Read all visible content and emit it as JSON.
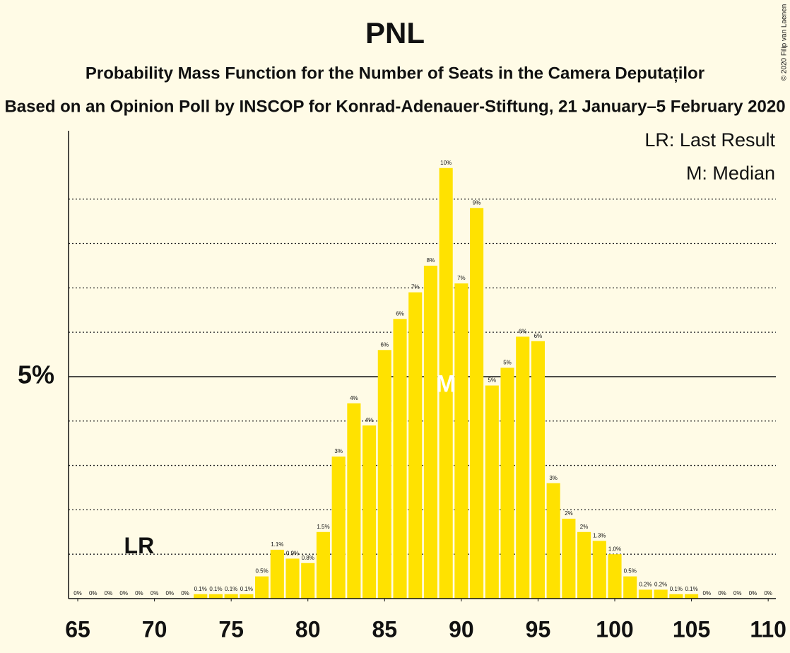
{
  "chart_data": {
    "type": "bar",
    "title": "PNL",
    "subtitle": "Probability Mass Function for the Number of Seats in the Camera Deputaților",
    "subtitle2": "Based on an Opinion Poll by INSCOP for Konrad-Adenauer-Stiftung, 21 January–5 February 2020",
    "copyright": "© 2020 Filip van Laenen",
    "legend": [
      "LR: Last Result",
      "M: Median"
    ],
    "annotations": [
      {
        "label": "LR",
        "x": 69
      },
      {
        "label": "M",
        "x": 89
      }
    ],
    "color": "#ffe200",
    "x": [
      65,
      66,
      67,
      68,
      69,
      70,
      71,
      72,
      73,
      74,
      75,
      76,
      77,
      78,
      79,
      80,
      81,
      82,
      83,
      84,
      85,
      86,
      87,
      88,
      89,
      90,
      91,
      92,
      93,
      94,
      95,
      96,
      97,
      98,
      99,
      100,
      101,
      102,
      103,
      104,
      105,
      106,
      107,
      108,
      109,
      110
    ],
    "values": [
      0,
      0,
      0,
      0,
      0,
      0,
      0,
      0,
      0.1,
      0.1,
      0.1,
      0.1,
      0.5,
      1.1,
      0.9,
      0.8,
      1.5,
      3.2,
      4.4,
      3.9,
      5.6,
      6.3,
      6.9,
      7.5,
      9.7,
      7.1,
      8.8,
      4.8,
      5.2,
      5.9,
      5.8,
      2.6,
      1.8,
      1.5,
      1.3,
      1.0,
      0.5,
      0.2,
      0.2,
      0.1,
      0.1,
      0,
      0,
      0,
      0,
      0
    ],
    "value_labels": [
      "0%",
      "0%",
      "0%",
      "0%",
      "0%",
      "0%",
      "0%",
      "0%",
      "0.1%",
      "0.1%",
      "0.1%",
      "0.1%",
      "0.5%",
      "1.1%",
      "0.9%",
      "0.8%",
      "1.5%",
      "3%",
      "4%",
      "4%",
      "6%",
      "6%",
      "7%",
      "8%",
      "10%",
      "7%",
      "9%",
      "5%",
      "5%",
      "6%",
      "6%",
      "3%",
      "2%",
      "2%",
      "1.3%",
      "1.0%",
      "0.5%",
      "0.2%",
      "0.2%",
      "0.1%",
      "0.1%",
      "0%",
      "0%",
      "0%",
      "0%",
      "0%"
    ],
    "xlim": [
      64.4,
      110.5
    ],
    "xticks": [
      65,
      70,
      75,
      80,
      85,
      90,
      95,
      100,
      105,
      110
    ],
    "ylim": [
      0,
      10.54
    ],
    "yticks": [
      {
        "value": 5,
        "label": "5%"
      }
    ],
    "minor_yticks": [
      1,
      2,
      3,
      4,
      6,
      7,
      8,
      9
    ],
    "grid": true
  }
}
